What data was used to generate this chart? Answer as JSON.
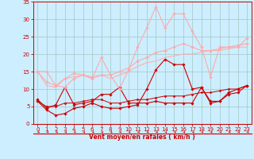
{
  "background_color": "#cceeff",
  "grid_color": "#aacccc",
  "xlabel": "Vent moyen/en rafales ( km/h )",
  "xlabel_color": "#cc0000",
  "xlim": [
    -0.5,
    23.5
  ],
  "ylim": [
    0,
    35
  ],
  "yticks": [
    0,
    5,
    10,
    15,
    20,
    25,
    30,
    35
  ],
  "xticks": [
    0,
    1,
    2,
    3,
    4,
    5,
    6,
    7,
    8,
    9,
    10,
    11,
    12,
    13,
    14,
    15,
    16,
    17,
    18,
    19,
    20,
    21,
    22,
    23
  ],
  "series": [
    {
      "x": [
        0,
        1,
        2,
        3,
        4,
        5,
        6,
        7,
        8,
        9,
        10,
        11,
        12,
        13,
        14,
        15,
        16,
        17,
        18,
        19,
        20,
        21,
        22,
        23
      ],
      "y": [
        7,
        4.5,
        5.5,
        10.5,
        5.5,
        6,
        6.5,
        8.5,
        8.5,
        10.5,
        6,
        6,
        6,
        6.5,
        6,
        6,
        6,
        6,
        10.5,
        6.5,
        6.5,
        9,
        10,
        11
      ],
      "color": "#cc0000",
      "lw": 0.8,
      "marker": "D",
      "ms": 1.8,
      "alpha": 1.0
    },
    {
      "x": [
        0,
        1,
        2,
        3,
        4,
        5,
        6,
        7,
        8,
        9,
        10,
        11,
        12,
        13,
        14,
        15,
        16,
        17,
        18,
        19,
        20,
        21,
        22,
        23
      ],
      "y": [
        6.5,
        4,
        2.5,
        3,
        4.5,
        5,
        6,
        5,
        4.5,
        4.5,
        5,
        5.5,
        10,
        15.5,
        18.5,
        17,
        17,
        10,
        10.5,
        6,
        6.5,
        8.5,
        9,
        11
      ],
      "color": "#cc0000",
      "lw": 0.8,
      "marker": "D",
      "ms": 1.8,
      "alpha": 1.0
    },
    {
      "x": [
        0,
        1,
        2,
        3,
        4,
        5,
        6,
        7,
        8,
        9,
        10,
        11,
        12,
        13,
        14,
        15,
        16,
        17,
        18,
        19,
        20,
        21,
        22,
        23
      ],
      "y": [
        6.5,
        5,
        5,
        6,
        6,
        6.5,
        7,
        7,
        6,
        6,
        6.5,
        7,
        7,
        7.5,
        8,
        8,
        8,
        8.5,
        9,
        9,
        9.5,
        10,
        10,
        11
      ],
      "color": "#cc0000",
      "lw": 0.7,
      "marker": "D",
      "ms": 1.5,
      "alpha": 1.0
    },
    {
      "x": [
        0,
        1,
        2,
        3,
        4,
        5,
        6,
        7,
        8,
        9,
        10,
        11,
        12,
        13,
        14,
        15,
        16,
        17,
        18,
        19,
        20,
        21,
        22,
        23
      ],
      "y": [
        15,
        15,
        11,
        10.5,
        13,
        14,
        13,
        19,
        14,
        10,
        15.5,
        22,
        27.5,
        33.5,
        27.5,
        31.5,
        31.5,
        26.5,
        22,
        13.5,
        22,
        22,
        22,
        24.5
      ],
      "color": "#ffaaaa",
      "lw": 0.8,
      "marker": "D",
      "ms": 1.8,
      "alpha": 1.0
    },
    {
      "x": [
        0,
        1,
        2,
        3,
        4,
        5,
        6,
        7,
        8,
        9,
        10,
        11,
        12,
        13,
        14,
        15,
        16,
        17,
        18,
        19,
        20,
        21,
        22,
        23
      ],
      "y": [
        15,
        12,
        11,
        13,
        14.5,
        14,
        13.5,
        14,
        14,
        15,
        16,
        18,
        19,
        20.5,
        21,
        22,
        23,
        22,
        21,
        21,
        21.5,
        22,
        22.5,
        23
      ],
      "color": "#ffaaaa",
      "lw": 0.8,
      "marker": "D",
      "ms": 1.8,
      "alpha": 1.0
    },
    {
      "x": [
        0,
        1,
        2,
        3,
        4,
        5,
        6,
        7,
        8,
        9,
        10,
        11,
        12,
        13,
        14,
        15,
        16,
        17,
        18,
        19,
        20,
        21,
        22,
        23
      ],
      "y": [
        15,
        11,
        10.5,
        13,
        13.5,
        14,
        13,
        14,
        13,
        14,
        15,
        16.5,
        17.5,
        18,
        19,
        19.5,
        20,
        20,
        20.5,
        21,
        21,
        21.5,
        22,
        22
      ],
      "color": "#ffaaaa",
      "lw": 0.7,
      "marker": null,
      "ms": 0,
      "alpha": 1.0
    }
  ],
  "tick_label_color": "#cc0000",
  "tick_label_fontsize": 5.0,
  "xlabel_fontsize": 5.5,
  "xlabel_fontweight": "bold"
}
